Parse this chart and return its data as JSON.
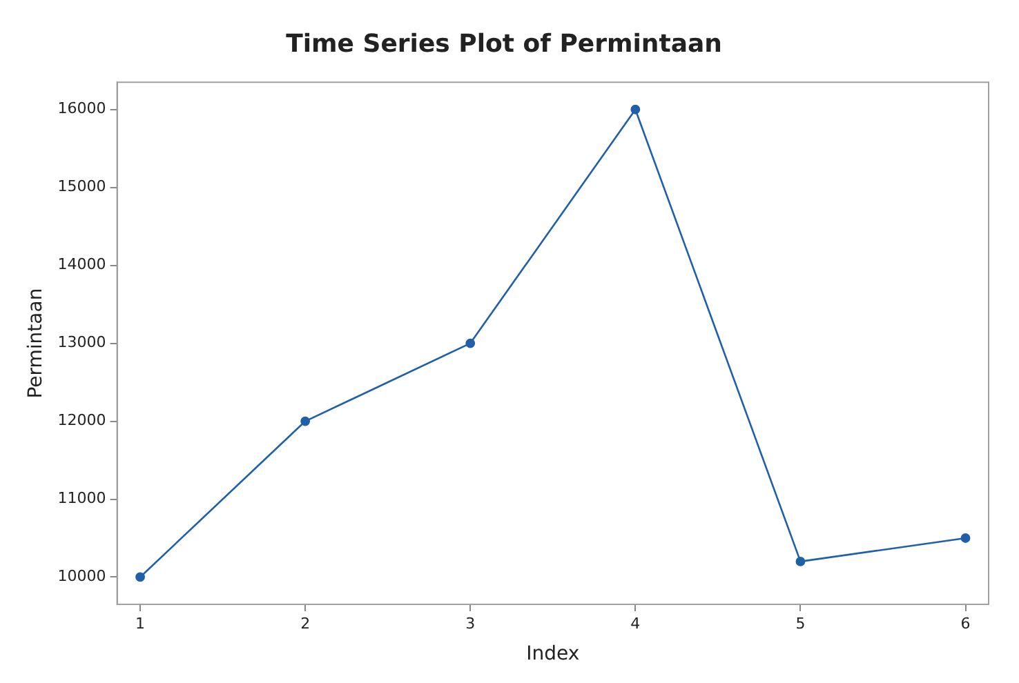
{
  "chart_data": {
    "type": "line",
    "title": "Time Series Plot of Permintaan",
    "xlabel": "Index",
    "ylabel": "Permintaan",
    "x": [
      1,
      2,
      3,
      4,
      5,
      6
    ],
    "series": [
      {
        "color": "#2060a8",
        "values": [
          10000,
          12000,
          13000,
          16000,
          10200,
          10500
        ]
      }
    ],
    "xlim": [
      0.86,
      6.14
    ],
    "xticks": [
      1,
      2,
      3,
      4,
      5,
      6
    ],
    "ylim": [
      9650,
      16350
    ],
    "yticks": [
      10000,
      11000,
      12000,
      13000,
      14000,
      15000,
      16000
    ],
    "grid": false,
    "legend": false,
    "marker": "circle",
    "line_style": "solid"
  }
}
